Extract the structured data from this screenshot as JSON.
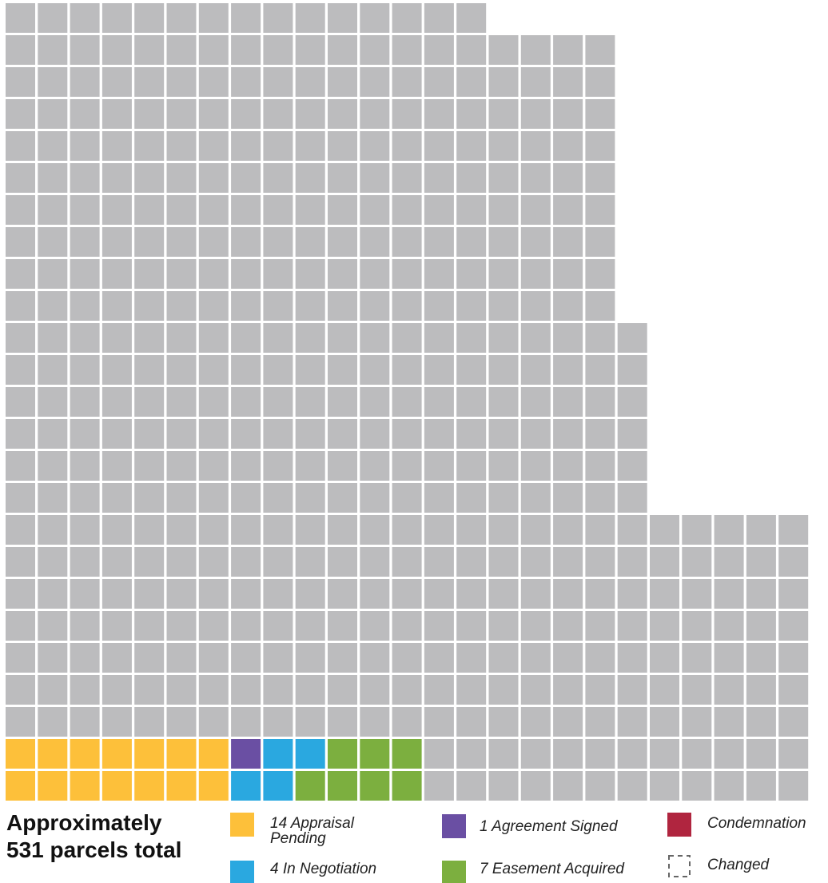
{
  "waffle": {
    "type": "waffle",
    "title": "Approximately\n531 parcels total",
    "total": 531,
    "rest_color": "#bcbcbe",
    "series": [
      {
        "name": "14 Appraisal Pending",
        "color": "#fdc03a",
        "value": 14
      },
      {
        "name": "1 Agreement Signed",
        "color": "#6a4fa3",
        "value": 1
      },
      {
        "name": "4 In Negotiation",
        "color": "#2aa8e0",
        "value": 4
      },
      {
        "name": "7 Easement Acquired",
        "color": "#7caf3f",
        "value": 7
      }
    ],
    "extra_legend": [
      {
        "name": "Condemnation",
        "color": "#b0253f"
      },
      {
        "name": "Changed"
      }
    ]
  }
}
